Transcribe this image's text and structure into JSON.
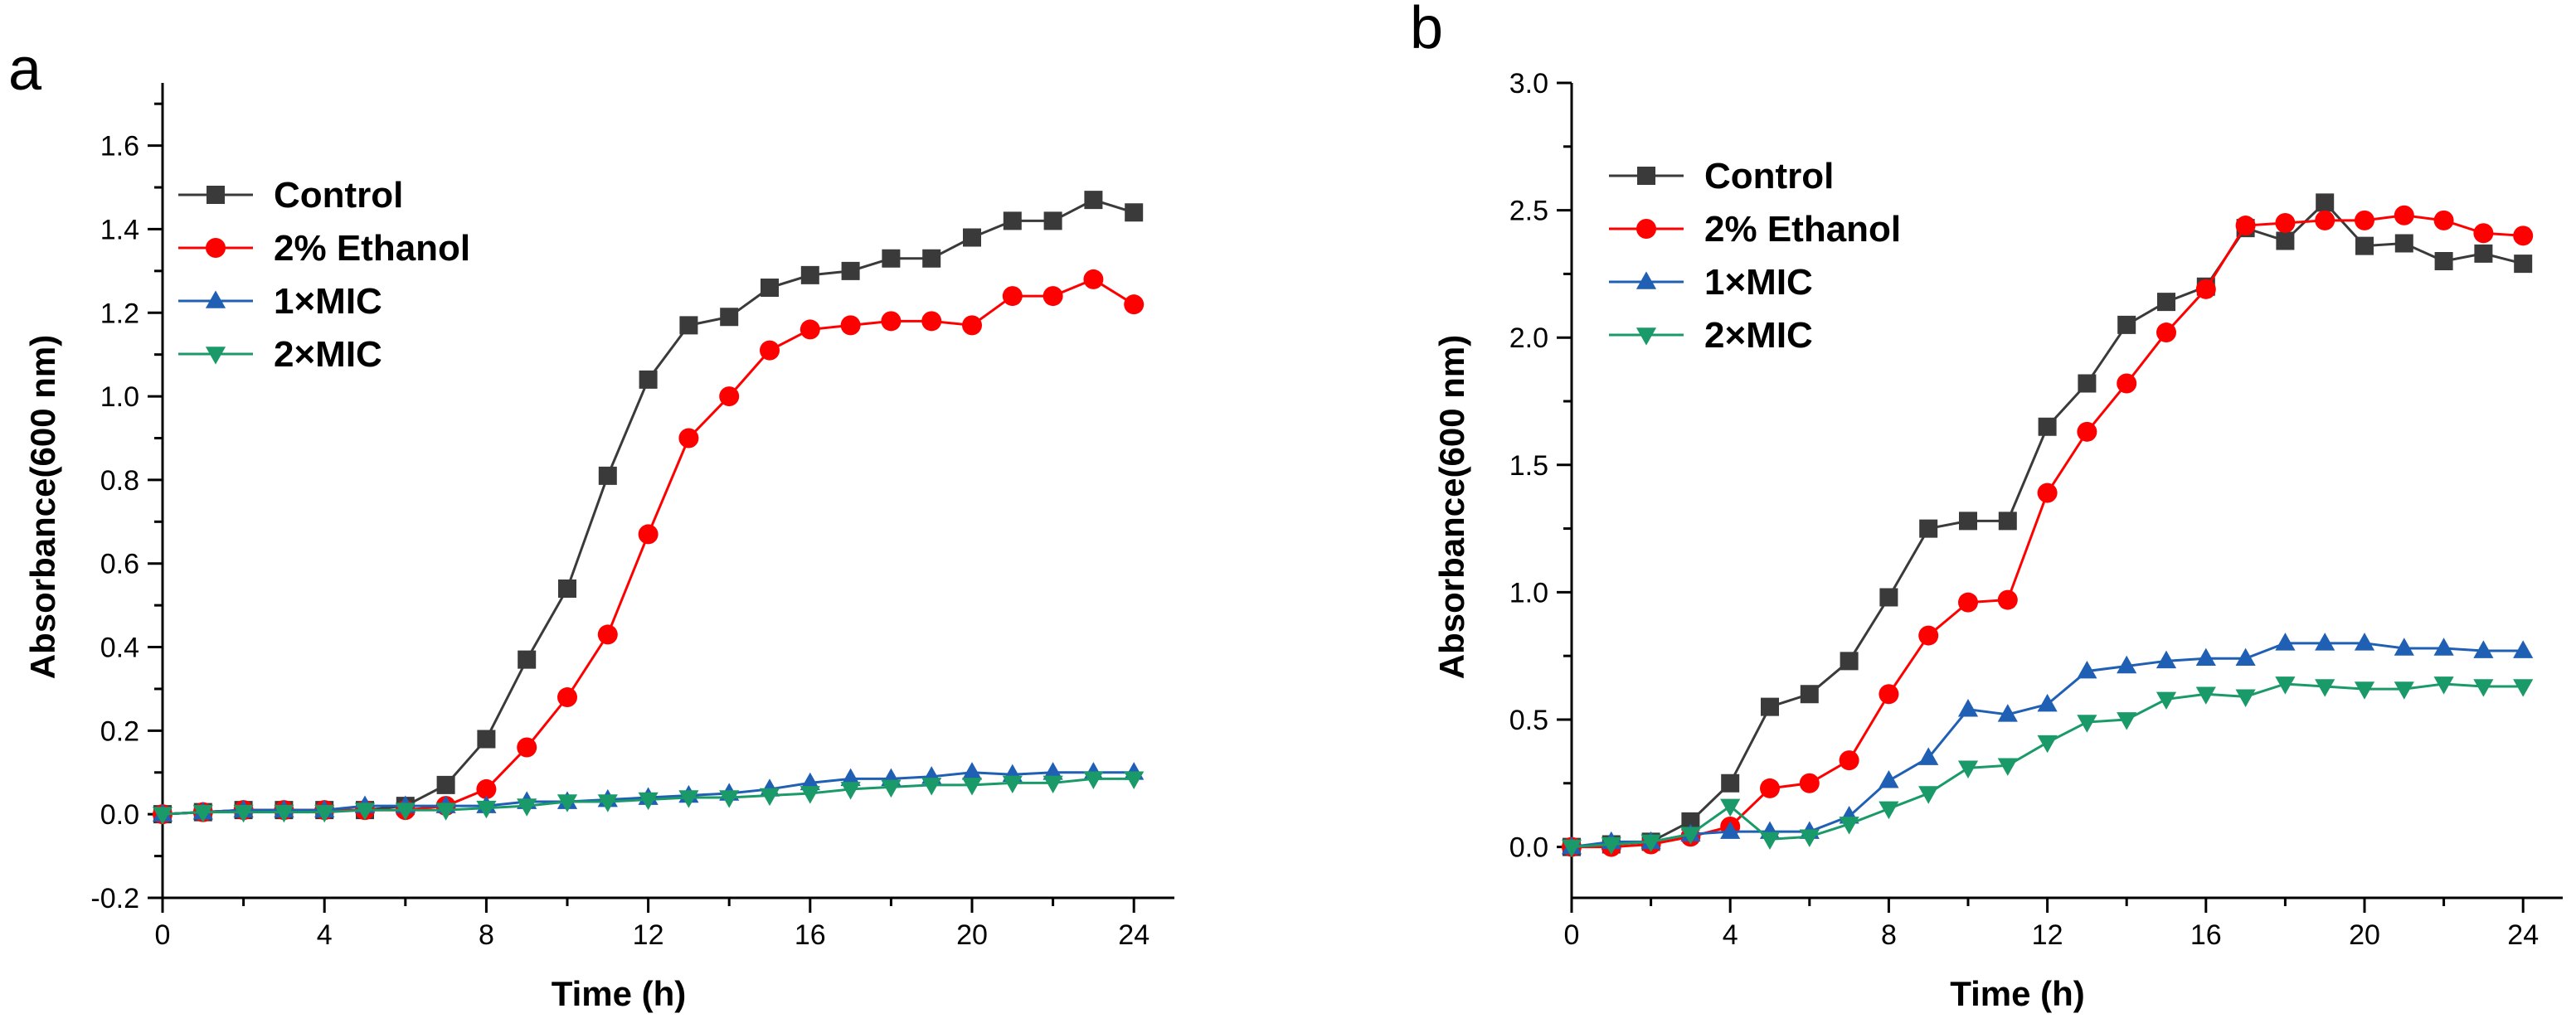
{
  "chart_data": [
    {
      "panel": "a",
      "type": "line",
      "xlabel": "Time (h)",
      "ylabel": "Absorbance(600 nm)",
      "xlim": [
        0,
        25
      ],
      "ylim": [
        -0.2,
        1.75
      ],
      "xticks": [
        0,
        4,
        8,
        12,
        16,
        20,
        24
      ],
      "yticks": [
        -0.2,
        0.0,
        0.2,
        0.4,
        0.6,
        0.8,
        1.0,
        1.2,
        1.4,
        1.6
      ],
      "xtick_labels": [
        "0",
        "4",
        "8",
        "12",
        "16",
        "20",
        "24"
      ],
      "ytick_labels": [
        "-0.2",
        "0.0",
        "0.2",
        "0.4",
        "0.6",
        "0.8",
        "1.0",
        "1.2",
        "1.4",
        "1.6"
      ],
      "legend_position": "top-left",
      "x": [
        0,
        1,
        2,
        3,
        4,
        5,
        6,
        7,
        8,
        9,
        10,
        11,
        12,
        13,
        14,
        15,
        16,
        17,
        18,
        19,
        20,
        21,
        22,
        23,
        24
      ],
      "series": [
        {
          "name": "Control",
          "color": "#3a3a3a",
          "marker": "square",
          "values": [
            0.0,
            0.005,
            0.01,
            0.01,
            0.01,
            0.01,
            0.02,
            0.07,
            0.18,
            0.37,
            0.54,
            0.81,
            1.04,
            1.17,
            1.19,
            1.26,
            1.29,
            1.3,
            1.33,
            1.33,
            1.38,
            1.42,
            1.42,
            1.47,
            1.44
          ]
        },
        {
          "name": "2% Ethanol",
          "color": "#ff0000",
          "marker": "circle",
          "values": [
            0.0,
            0.005,
            0.01,
            0.01,
            0.01,
            0.01,
            0.01,
            0.02,
            0.06,
            0.16,
            0.28,
            0.43,
            0.67,
            0.9,
            1.0,
            1.11,
            1.16,
            1.17,
            1.18,
            1.18,
            1.17,
            1.24,
            1.24,
            1.28,
            1.22
          ]
        },
        {
          "name": "1×MIC",
          "color": "#1f5fb4",
          "marker": "triangle-up",
          "values": [
            0.0,
            0.005,
            0.01,
            0.01,
            0.01,
            0.02,
            0.02,
            0.02,
            0.02,
            0.03,
            0.03,
            0.035,
            0.04,
            0.045,
            0.05,
            0.06,
            0.075,
            0.085,
            0.085,
            0.09,
            0.1,
            0.095,
            0.1,
            0.1,
            0.1
          ]
        },
        {
          "name": "2×MIC",
          "color": "#1a9a68",
          "marker": "triangle-down",
          "values": [
            0.0,
            0.005,
            0.005,
            0.005,
            0.005,
            0.01,
            0.01,
            0.01,
            0.015,
            0.02,
            0.03,
            0.03,
            0.035,
            0.04,
            0.04,
            0.045,
            0.05,
            0.06,
            0.065,
            0.07,
            0.07,
            0.075,
            0.075,
            0.085,
            0.085
          ]
        }
      ]
    },
    {
      "panel": "b",
      "type": "line",
      "xlabel": "Time (h)",
      "ylabel": "Absorbance(600 nm)",
      "xlim": [
        0,
        25
      ],
      "ylim": [
        -0.2,
        3.0
      ],
      "xticks": [
        0,
        4,
        8,
        12,
        16,
        20,
        24
      ],
      "yticks": [
        0.0,
        0.5,
        1.0,
        1.5,
        2.0,
        2.5,
        3.0
      ],
      "xtick_labels": [
        "0",
        "4",
        "8",
        "12",
        "16",
        "20",
        "24"
      ],
      "ytick_labels": [
        "0.0",
        "0.5",
        "1.0",
        "1.5",
        "2.0",
        "2.5",
        "3.0"
      ],
      "legend_position": "top-left",
      "x": [
        0,
        1,
        2,
        3,
        4,
        5,
        6,
        7,
        8,
        9,
        10,
        11,
        12,
        13,
        14,
        15,
        16,
        17,
        18,
        19,
        20,
        21,
        22,
        23,
        24
      ],
      "series": [
        {
          "name": "Control",
          "color": "#3a3a3a",
          "marker": "square",
          "values": [
            0.0,
            0.01,
            0.02,
            0.1,
            0.25,
            0.55,
            0.6,
            0.73,
            0.98,
            1.25,
            1.28,
            1.28,
            1.65,
            1.82,
            2.05,
            2.14,
            2.2,
            2.43,
            2.38,
            2.53,
            2.36,
            2.37,
            2.3,
            2.33,
            2.29
          ]
        },
        {
          "name": "2% Ethanol",
          "color": "#ff0000",
          "marker": "circle",
          "values": [
            0.0,
            0.0,
            0.01,
            0.04,
            0.08,
            0.23,
            0.25,
            0.34,
            0.6,
            0.83,
            0.96,
            0.97,
            1.39,
            1.63,
            1.82,
            2.02,
            2.19,
            2.44,
            2.45,
            2.46,
            2.46,
            2.48,
            2.46,
            2.41,
            2.4
          ]
        },
        {
          "name": "1×MIC",
          "color": "#1f5fb4",
          "marker": "triangle-up",
          "values": [
            0.0,
            0.02,
            0.02,
            0.05,
            0.06,
            0.06,
            0.06,
            0.12,
            0.26,
            0.35,
            0.54,
            0.52,
            0.56,
            0.69,
            0.71,
            0.73,
            0.74,
            0.74,
            0.8,
            0.8,
            0.8,
            0.78,
            0.78,
            0.77,
            0.77
          ]
        },
        {
          "name": "2×MIC",
          "color": "#1a9a68",
          "marker": "triangle-down",
          "values": [
            0.0,
            0.01,
            0.02,
            0.05,
            0.16,
            0.03,
            0.04,
            0.09,
            0.15,
            0.21,
            0.31,
            0.32,
            0.41,
            0.49,
            0.5,
            0.58,
            0.6,
            0.59,
            0.64,
            0.63,
            0.62,
            0.62,
            0.64,
            0.63,
            0.63
          ]
        }
      ]
    }
  ]
}
